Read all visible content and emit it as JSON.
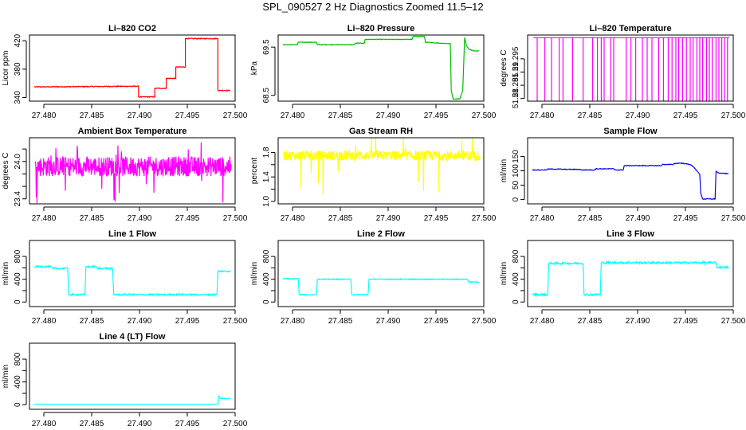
{
  "title": "SPL_090527  2 Hz Diagnostics Zoomed 11.5–12",
  "chart_data": [
    {
      "type": "line",
      "title": "Li–820 CO2",
      "ylabel": "Licor ppm",
      "color": "#ff0000",
      "xlim": [
        27.4785,
        27.5
      ],
      "ylim": [
        335,
        428
      ],
      "xticks": [
        "27.480",
        "27.485",
        "27.490",
        "27.495",
        "27.500"
      ],
      "yticks": [
        340,
        380,
        420
      ],
      "noise": 0.6,
      "x": [
        27.479,
        27.4899,
        27.4899,
        27.4916,
        27.4916,
        27.4928,
        27.4928,
        27.4938,
        27.4938,
        27.4948,
        27.4948,
        27.4982,
        27.4982,
        27.4995
      ],
      "y": [
        355,
        356,
        341,
        341,
        353,
        353,
        367,
        367,
        383,
        383,
        423,
        423,
        350,
        350
      ]
    },
    {
      "type": "line",
      "title": "Li–820 Pressure",
      "ylabel": "kPa",
      "color": "#00bb00",
      "xlim": [
        27.4785,
        27.5
      ],
      "ylim": [
        68.38,
        69.75
      ],
      "xticks": [
        "27.480",
        "27.485",
        "27.490",
        "27.495",
        "27.500"
      ],
      "yticks": [
        68.5,
        69.5
      ],
      "noise": 0.006,
      "x": [
        27.479,
        27.4805,
        27.4806,
        27.4825,
        27.4826,
        27.4865,
        27.4866,
        27.4875,
        27.4876,
        27.4925,
        27.4926,
        27.4938,
        27.4939,
        27.4965,
        27.4966,
        27.4968,
        27.4975,
        27.4978,
        27.498,
        27.4982,
        27.4985,
        27.499,
        27.4995
      ],
      "y": [
        69.55,
        69.55,
        69.6,
        69.6,
        69.55,
        69.55,
        69.58,
        69.58,
        69.66,
        69.66,
        69.72,
        69.72,
        69.6,
        69.57,
        68.6,
        68.42,
        68.43,
        68.6,
        69.7,
        69.52,
        69.45,
        69.42,
        69.42
      ]
    },
    {
      "type": "line",
      "title": "Li–820 Temperature",
      "ylabel": "degrees C",
      "color": "#ff00ff",
      "xlim": [
        27.4785,
        27.5
      ],
      "ylim": [
        51.279,
        51.304
      ],
      "xticks": [
        "27.480",
        "27.485",
        "27.490",
        "27.495",
        "27.500"
      ],
      "yticks": [
        51.28,
        51.285,
        51.29,
        51.295
      ],
      "pattern": "spikes",
      "base": 51.303,
      "low": 51.279,
      "x_start": 27.4791,
      "x_end": 27.4996,
      "spike_x": [
        27.4795,
        27.4803,
        27.481,
        27.4818,
        27.4822,
        27.4832,
        27.4843,
        27.4853,
        27.4858,
        27.4862,
        27.4865,
        27.4872,
        27.4875,
        27.4888,
        27.4893,
        27.4898,
        27.4905,
        27.491,
        27.4915,
        27.4922,
        27.4927,
        27.4932,
        27.4936,
        27.494,
        27.4943,
        27.4947,
        27.4951,
        27.4955,
        27.4958,
        27.4962,
        27.4965,
        27.4968,
        27.4972,
        27.4975,
        27.4978,
        27.4982,
        27.4985,
        27.4988,
        27.4991,
        27.4994
      ]
    },
    {
      "type": "line",
      "title": "Ambient Box Temperature",
      "ylabel": "degrees C",
      "color": "#ff00ff",
      "xlim": [
        27.4785,
        27.5
      ],
      "ylim": [
        23.32,
        24.38
      ],
      "xticks": [
        "27.480",
        "27.485",
        "27.490",
        "27.495",
        "27.500"
      ],
      "yticks": [
        23.4,
        23.6,
        23.8,
        24.0,
        24.2
      ],
      "ytick_labels": [
        "23.4",
        "",
        "",
        "24.0",
        ""
      ],
      "pattern": "band",
      "x_start": 27.4791,
      "x_end": 27.4996,
      "center": 23.92,
      "spread": 0.16,
      "extreme": 0.5
    },
    {
      "type": "line",
      "title": "Gas Stream RH",
      "ylabel": "percent",
      "color": "#ffff00",
      "xlim": [
        27.4785,
        27.5
      ],
      "ylim": [
        0.96,
        2.04
      ],
      "xticks": [
        "27.480",
        "27.485",
        "27.490",
        "27.495",
        "27.500"
      ],
      "yticks": [
        1.0,
        1.2,
        1.4,
        1.6,
        1.8
      ],
      "ytick_labels": [
        "1.0",
        "",
        "1.4",
        "",
        "1.8"
      ],
      "pattern": "band",
      "x_start": 27.4791,
      "x_end": 27.4996,
      "center": 1.75,
      "spread": 0.08,
      "extreme": 0.6
    },
    {
      "type": "line",
      "title": "Sample Flow",
      "ylabel": "ml/min",
      "color": "#0000ff",
      "xlim": [
        27.4785,
        27.5
      ],
      "ylim": [
        -15,
        215
      ],
      "xticks": [
        "27.480",
        "27.485",
        "27.490",
        "27.495",
        "27.500"
      ],
      "yticks": [
        0,
        50,
        100,
        150
      ],
      "noise": 1.2,
      "x": [
        27.479,
        27.4805,
        27.4806,
        27.482,
        27.4821,
        27.484,
        27.4841,
        27.4855,
        27.4856,
        27.4875,
        27.4876,
        27.4885,
        27.4886,
        27.4925,
        27.4926,
        27.4937,
        27.4938,
        27.4945,
        27.4955,
        27.4958,
        27.4962,
        27.4965,
        27.4966,
        27.4968,
        27.4981,
        27.4982,
        27.4985,
        27.4995
      ],
      "y": [
        103,
        103,
        106,
        106,
        105,
        105,
        103,
        103,
        107,
        107,
        103,
        103,
        118,
        118,
        122,
        122,
        125,
        127,
        122,
        115,
        100,
        88,
        22,
        2,
        2,
        98,
        92,
        90
      ]
    },
    {
      "type": "line",
      "title": "Line 1 Flow",
      "ylabel": "ml/min",
      "color": "#00ffff",
      "xlim": [
        27.4785,
        27.5
      ],
      "ylim": [
        -80,
        1080
      ],
      "xticks": [
        "27.480",
        "27.485",
        "27.490",
        "27.495",
        "27.500"
      ],
      "yticks": [
        0,
        200,
        400,
        600,
        800
      ],
      "ytick_labels": [
        "0",
        "",
        "400",
        "",
        "800"
      ],
      "noise": 14,
      "x": [
        27.479,
        27.4808,
        27.4809,
        27.4825,
        27.4826,
        27.4843,
        27.4844,
        27.4855,
        27.4856,
        27.4872,
        27.4873,
        27.4981,
        27.4982,
        27.4995
      ],
      "y": [
        620,
        620,
        590,
        590,
        130,
        130,
        620,
        620,
        590,
        590,
        130,
        130,
        540,
        540
      ]
    },
    {
      "type": "line",
      "title": "Line 2 Flow",
      "ylabel": "ml/min",
      "color": "#00ffff",
      "xlim": [
        27.4785,
        27.5
      ],
      "ylim": [
        -80,
        1080
      ],
      "xticks": [
        "27.480",
        "27.485",
        "27.490",
        "27.495",
        "27.500"
      ],
      "yticks": [
        0,
        200,
        400,
        600,
        800
      ],
      "ytick_labels": [
        "0",
        "",
        "400",
        "",
        "800"
      ],
      "noise": 8,
      "x": [
        27.479,
        27.4806,
        27.4807,
        27.4825,
        27.4826,
        27.4861,
        27.4862,
        27.4879,
        27.488,
        27.4983,
        27.4984,
        27.4995
      ],
      "y": [
        410,
        410,
        130,
        130,
        400,
        400,
        130,
        130,
        400,
        400,
        350,
        350
      ]
    },
    {
      "type": "line",
      "title": "Line 3 Flow",
      "ylabel": "ml/min",
      "color": "#00ffff",
      "xlim": [
        27.4785,
        27.5
      ],
      "ylim": [
        -80,
        1080
      ],
      "xticks": [
        "27.480",
        "27.485",
        "27.490",
        "27.495",
        "27.500"
      ],
      "yticks": [
        0,
        200,
        400,
        600,
        800
      ],
      "ytick_labels": [
        "0",
        "",
        "400",
        "",
        "800"
      ],
      "noise": 18,
      "x": [
        27.479,
        27.4806,
        27.4807,
        27.4843,
        27.4844,
        27.4861,
        27.4862,
        27.4982,
        27.4983,
        27.4995
      ],
      "y": [
        130,
        130,
        680,
        680,
        130,
        130,
        690,
        690,
        610,
        610
      ]
    },
    {
      "type": "line",
      "title": "Line 4 (LT) Flow",
      "ylabel": "ml/min",
      "color": "#00ffff",
      "xlim": [
        27.4785,
        27.5
      ],
      "ylim": [
        -80,
        1080
      ],
      "xticks": [
        "27.480",
        "27.485",
        "27.490",
        "27.495",
        "27.500"
      ],
      "yticks": [
        0,
        200,
        400,
        600,
        800
      ],
      "ytick_labels": [
        "0",
        "",
        "400",
        "",
        "800"
      ],
      "noise": 2,
      "x": [
        27.479,
        27.4982,
        27.4983,
        27.4985,
        27.4995
      ],
      "y": [
        8,
        8,
        150,
        110,
        110
      ]
    }
  ]
}
